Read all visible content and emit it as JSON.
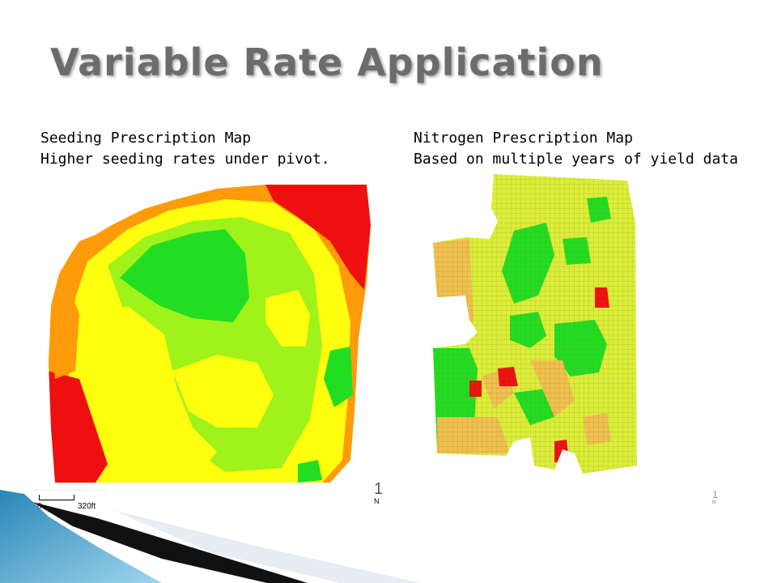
{
  "slide": {
    "title": "Variable Rate Application",
    "left_caption": {
      "line1": "Seeding Prescription Map",
      "line2": "Higher seeding rates under pivot."
    },
    "right_caption": {
      "line1": "Nitrogen Prescription Map",
      "line2": "Based on multiple years of yield data"
    },
    "scale_bar": {
      "start": "0",
      "end": "320ft"
    },
    "north_left": {
      "number": "1",
      "letter": "N"
    },
    "north_right": {
      "number": "1",
      "letter": "N"
    }
  },
  "colors": {
    "red": "#ee1010",
    "orange": "#ff9a0a",
    "yellow": "#fefe0e",
    "light_green": "#9ff21a",
    "green": "#22dd22",
    "grid_yellow_green": "#dcee3a",
    "grid_tan": "#f0c050",
    "title_gray": "#6c6c6c",
    "deco_blue": "#2a86b8",
    "deco_dark": "#111111"
  },
  "icons": [
    "north-arrow-icon",
    "scale-bar-icon"
  ]
}
